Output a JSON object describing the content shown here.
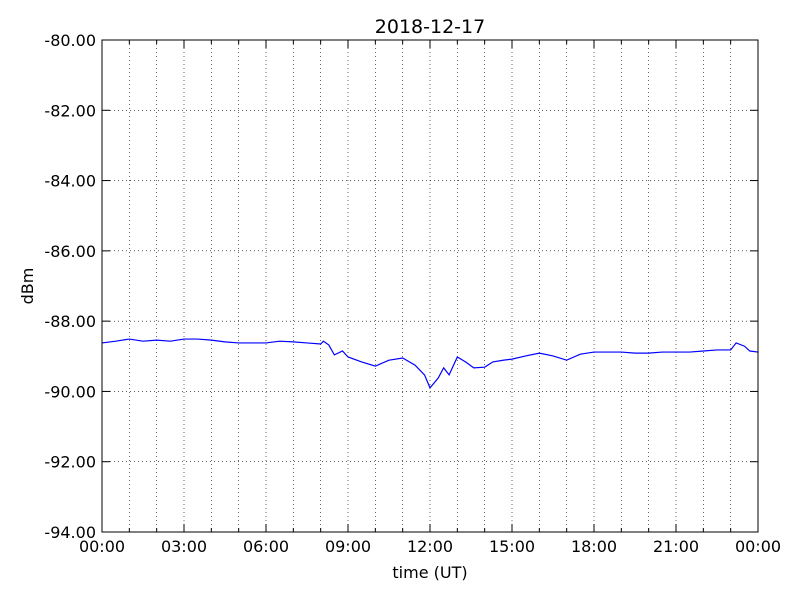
{
  "chart_data": {
    "type": "line",
    "title": "2018-12-17",
    "xlabel": "time (UT)",
    "ylabel": "dBm",
    "x": [
      0,
      0.5,
      1,
      1.5,
      2,
      2.5,
      3,
      3.5,
      4,
      4.5,
      5,
      5.5,
      6,
      6.5,
      7,
      7.5,
      8,
      8.1,
      8.3,
      8.5,
      8.8,
      9,
      9.5,
      10,
      10.5,
      11,
      11.45,
      11.8,
      12,
      12.3,
      12.5,
      12.7,
      13,
      13.3,
      13.6,
      14,
      14.3,
      14.7,
      15,
      15.5,
      16,
      16.5,
      17,
      17.5,
      18,
      18.5,
      19,
      19.5,
      20,
      20.5,
      21,
      21.5,
      22,
      22.5,
      23,
      23.2,
      23.5,
      23.7,
      24
    ],
    "series": [
      {
        "color": "#0000ff",
        "values": [
          -88.62,
          -88.57,
          -88.51,
          -88.57,
          -88.54,
          -88.57,
          -88.51,
          -88.51,
          -88.54,
          -88.59,
          -88.62,
          -88.62,
          -88.62,
          -88.57,
          -88.59,
          -88.62,
          -88.65,
          -88.57,
          -88.68,
          -88.96,
          -88.85,
          -89.02,
          -89.16,
          -89.28,
          -89.11,
          -89.05,
          -89.25,
          -89.53,
          -89.9,
          -89.62,
          -89.33,
          -89.53,
          -89.02,
          -89.16,
          -89.33,
          -89.31,
          -89.16,
          -89.11,
          -89.08,
          -88.99,
          -88.91,
          -88.99,
          -89.11,
          -88.94,
          -88.88,
          -88.88,
          -88.88,
          -88.91,
          -88.91,
          -88.88,
          -88.88,
          -88.88,
          -88.85,
          -88.82,
          -88.82,
          -88.62,
          -88.71,
          -88.85,
          -88.88
        ]
      }
    ],
    "xlim": [
      0,
      24
    ],
    "xticks": [
      {
        "value": 0,
        "label": "00:00"
      },
      {
        "value": 3,
        "label": "03:00"
      },
      {
        "value": 6,
        "label": "06:00"
      },
      {
        "value": 9,
        "label": "09:00"
      },
      {
        "value": 12,
        "label": "12:00"
      },
      {
        "value": 15,
        "label": "15:00"
      },
      {
        "value": 18,
        "label": "18:00"
      },
      {
        "value": 21,
        "label": "21:00"
      },
      {
        "value": 24,
        "label": "00:00"
      }
    ],
    "xminorticks": [
      1,
      2,
      4,
      5,
      7,
      8,
      10,
      11,
      13,
      14,
      16,
      17,
      19,
      20,
      22,
      23
    ],
    "ylim": [
      -94,
      -80
    ],
    "yticks": [
      {
        "value": -94,
        "label": "-94.00"
      },
      {
        "value": -92,
        "label": "-92.00"
      },
      {
        "value": -90,
        "label": "-90.00"
      },
      {
        "value": -88,
        "label": "-88.00"
      },
      {
        "value": -86,
        "label": "-86.00"
      },
      {
        "value": -84,
        "label": "-84.00"
      },
      {
        "value": -82,
        "label": "-82.00"
      },
      {
        "value": -80,
        "label": "-80.00"
      }
    ],
    "grid": true
  }
}
